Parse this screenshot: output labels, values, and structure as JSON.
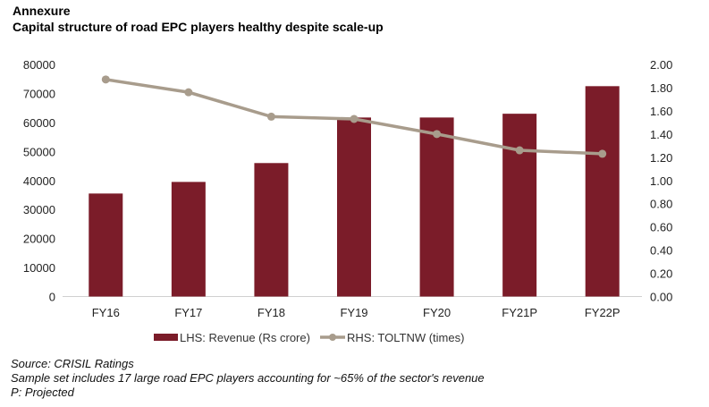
{
  "header": {
    "label": "Annexure",
    "title": "Capital structure of road EPC players healthy despite scale-up"
  },
  "chart_data": {
    "type": "bar+line",
    "categories": [
      "FY16",
      "FY17",
      "FY18",
      "FY19",
      "FY20",
      "FY21P",
      "FY22P"
    ],
    "series": [
      {
        "name": "LHS: Revenue (Rs crore)",
        "type": "bar",
        "axis": "left",
        "color": "#7b1c29",
        "values": [
          35500,
          39500,
          46000,
          61700,
          61700,
          63000,
          72500
        ]
      },
      {
        "name": "RHS: TOLTNW (times)",
        "type": "line",
        "axis": "right",
        "color": "#a89c8c",
        "values": [
          1.87,
          1.76,
          1.55,
          1.53,
          1.4,
          1.26,
          1.23
        ]
      }
    ],
    "ylim_left": [
      0,
      80000
    ],
    "yticks_left": [
      "0",
      "10000",
      "20000",
      "30000",
      "40000",
      "50000",
      "60000",
      "70000",
      "80000"
    ],
    "ylim_right": [
      0,
      2
    ],
    "yticks_right": [
      "0.00",
      "0.20",
      "0.40",
      "0.60",
      "0.80",
      "1.00",
      "1.20",
      "1.40",
      "1.60",
      "1.80",
      "2.00"
    ],
    "grid": false,
    "legend_position": "bottom"
  },
  "footer": {
    "source": "Source: CRISIL Ratings",
    "note": "Sample set includes 17 large road EPC players accounting for ~65% of the sector's revenue",
    "projected": "P: Projected"
  }
}
